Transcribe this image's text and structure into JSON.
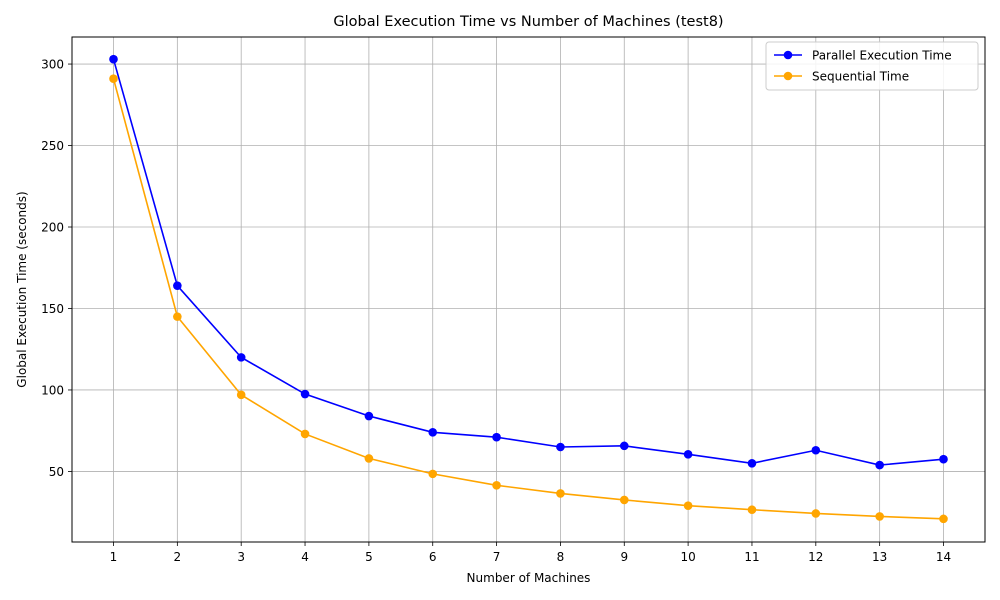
{
  "chart_data": {
    "type": "line",
    "title": "Global Execution Time vs Number of Machines (test8)",
    "xlabel": "Number of Machines",
    "ylabel": "Global Execution Time (seconds)",
    "x": [
      1,
      2,
      3,
      4,
      5,
      6,
      7,
      8,
      9,
      10,
      11,
      12,
      13,
      14
    ],
    "xticks": [
      "1",
      "2",
      "3",
      "4",
      "5",
      "6",
      "7",
      "8",
      "9",
      "10",
      "11",
      "12",
      "13",
      "14"
    ],
    "yticks": [
      50,
      100,
      150,
      200,
      250,
      300
    ],
    "xlim": [
      0.35,
      14.65
    ],
    "ylim": [
      6.7,
      316.6
    ],
    "grid": true,
    "legend_position": "top-right",
    "series": [
      {
        "name": "Parallel Execution Time",
        "color": "#0000ff",
        "values": [
          303,
          164,
          120,
          97.5,
          84,
          74,
          71,
          65,
          65.7,
          60.5,
          55,
          63,
          53.9,
          57.5
        ]
      },
      {
        "name": "Sequential Time",
        "color": "#ffa500",
        "values": [
          291,
          145,
          97,
          73,
          58,
          48.5,
          41.5,
          36.5,
          32.5,
          29,
          26.5,
          24.2,
          22.4,
          20.9
        ]
      }
    ]
  }
}
